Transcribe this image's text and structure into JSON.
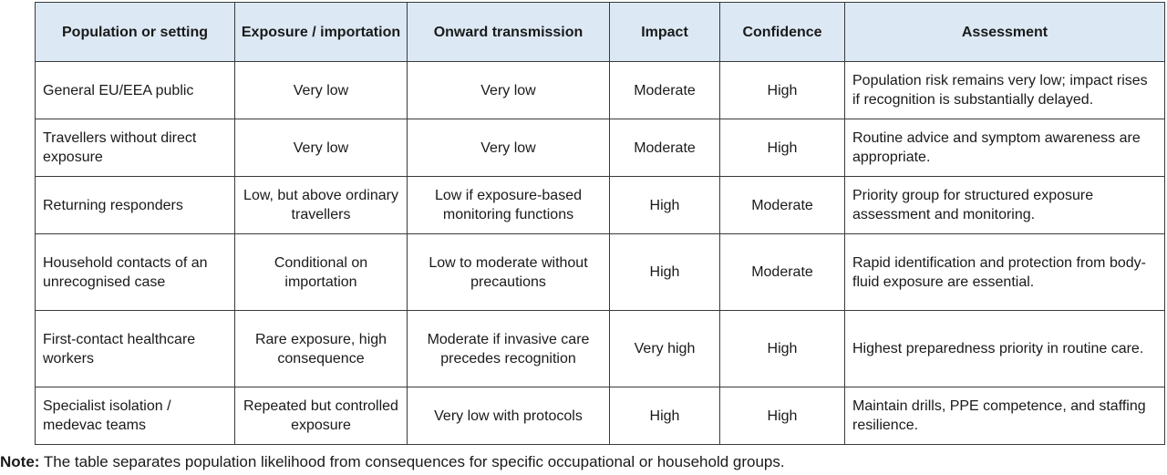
{
  "table": {
    "headers": [
      "Population or setting",
      "Exposure / importation",
      "Onward transmission",
      "Impact",
      "Confidence",
      "Assessment"
    ],
    "rows": [
      [
        "General EU/EEA public",
        "Very low",
        "Very low",
        "Moderate",
        "High",
        "Population risk remains very low; impact rises if recognition is substantially delayed."
      ],
      [
        "Travellers without direct exposure",
        "Very low",
        "Very low",
        "Moderate",
        "High",
        "Routine advice and symptom awareness are appropriate."
      ],
      [
        "Returning responders",
        "Low, but above ordinary travellers",
        "Low if exposure-based monitoring functions",
        "High",
        "Moderate",
        "Priority group for structured exposure assessment and monitoring."
      ],
      [
        "Household contacts of an unrecognised case",
        "Conditional on importation",
        "Low to moderate without precautions",
        "High",
        "Moderate",
        "Rapid identification and protection from body-fluid exposure are essential."
      ],
      [
        "First-contact healthcare workers",
        "Rare exposure, high consequence",
        "Moderate if invasive care precedes recognition",
        "Very high",
        "High",
        "Highest preparedness priority in routine care."
      ],
      [
        "Specialist isolation / medevac teams",
        "Repeated but controlled exposure",
        "Very low with protocols",
        "High",
        "High",
        "Maintain drills, PPE competence, and staffing resilience."
      ]
    ],
    "header_bg": "#dce9f5",
    "border_color": "#3a3a3a"
  },
  "note": {
    "label": "Note:",
    "text": "The table separates population likelihood from consequences for specific occupational or household groups."
  }
}
